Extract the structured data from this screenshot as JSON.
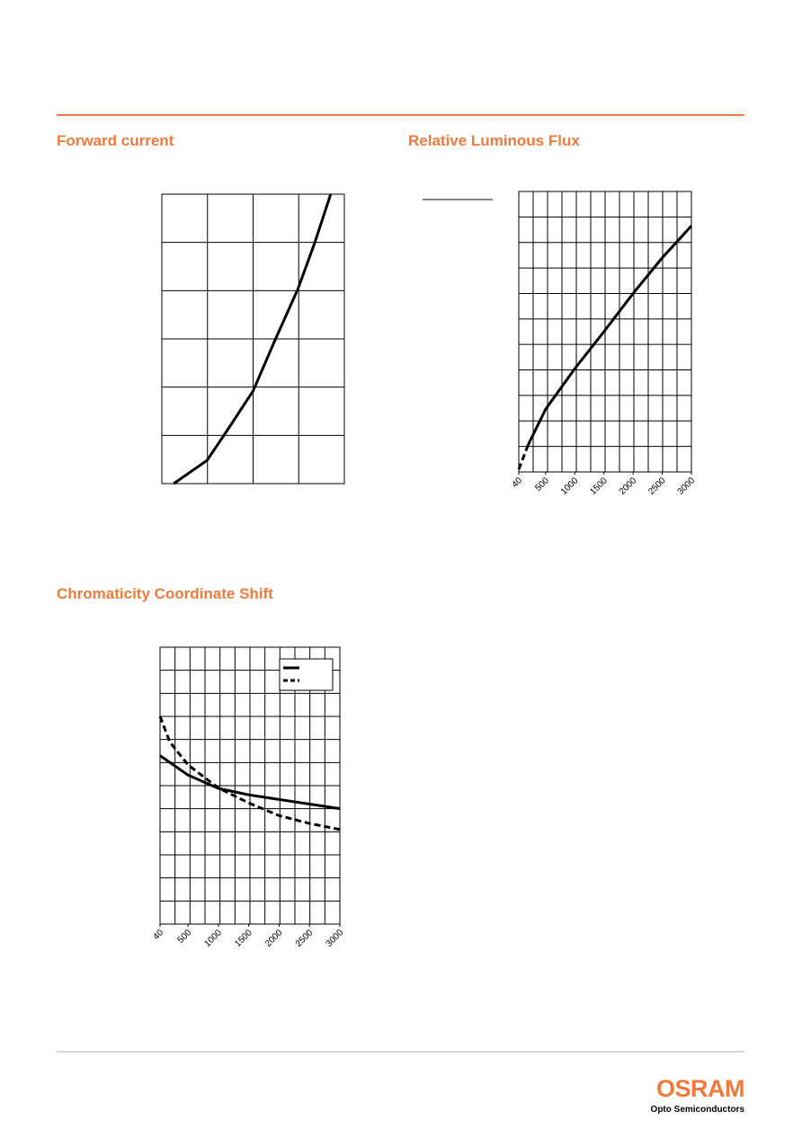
{
  "chart_data": [
    {
      "type": "line",
      "title": "Forward current",
      "xlim": [
        0,
        4
      ],
      "ylim": [
        0,
        6
      ],
      "xgrid_divisions": 4,
      "ygrid_divisions": 6,
      "series": [
        {
          "color": "#000000",
          "dash": false,
          "x": [
            0.26,
            0.99,
            1.48,
            2.0,
            2.46,
            2.98,
            3.35,
            3.7
          ],
          "values": [
            0,
            0.48,
            1.17,
            1.92,
            2.93,
            4.03,
            4.99,
            6
          ]
        }
      ]
    },
    {
      "type": "line",
      "title": "Relative Luminous Flux",
      "xlim": [
        40,
        3000
      ],
      "ylim": [
        0,
        11
      ],
      "xgrid_divisions": 12,
      "ygrid_divisions": 11,
      "xticks": [
        40,
        500,
        1000,
        1500,
        2000,
        2500,
        3000
      ],
      "series": [
        {
          "color": "#000000",
          "dash": true,
          "x": [
            40,
            200
          ],
          "values": [
            0.1,
            1.06
          ]
        },
        {
          "color": "#000000",
          "dash": false,
          "x": [
            200,
            500,
            1000,
            1500,
            2000,
            2500,
            3000
          ],
          "values": [
            1.06,
            2.46,
            4.05,
            5.5,
            7.0,
            8.4,
            9.65
          ]
        }
      ]
    },
    {
      "type": "line",
      "title": "Chromaticity Coordinate Shift",
      "xlim": [
        40,
        3000
      ],
      "ylim": [
        0,
        12
      ],
      "xgrid_divisions": 12,
      "ygrid_divisions": 12,
      "xticks": [
        40,
        500,
        1000,
        1500,
        2000,
        2500,
        3000
      ],
      "legend": "upper right",
      "series": [
        {
          "color": "#000000",
          "dash": false,
          "x": [
            40,
            500,
            1000,
            1500,
            2000,
            2500,
            3000
          ],
          "values": [
            7.3,
            6.46,
            5.88,
            5.6,
            5.4,
            5.2,
            5.0
          ]
        },
        {
          "color": "#000000",
          "dash": true,
          "x": [
            40,
            200,
            500,
            1000,
            1500,
            2000,
            2500,
            3000
          ],
          "values": [
            9.0,
            7.9,
            6.9,
            5.9,
            5.25,
            4.7,
            4.36,
            4.1
          ]
        }
      ]
    }
  ],
  "footer": {
    "logo": "OSRAM",
    "tagline": "Opto Semiconductors"
  }
}
